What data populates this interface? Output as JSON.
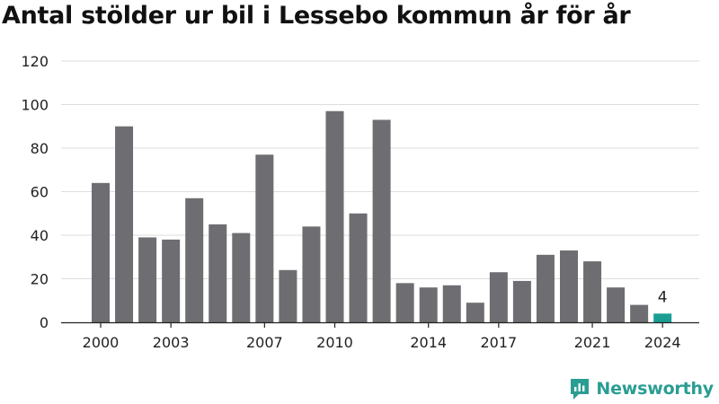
{
  "title": "Antal stölder ur bil i Lessebo kommun år för år",
  "brand": {
    "name": "Newsworthy",
    "color": "#2a9d93"
  },
  "colors": {
    "bar": "#6e6d72",
    "highlight": "#1a9e93",
    "grid": "#dddddd",
    "axis": "#222222"
  },
  "chart_data": {
    "type": "bar",
    "title": "Antal stölder ur bil i Lessebo kommun år för år",
    "xlabel": "",
    "ylabel": "",
    "categories": [
      2000,
      2001,
      2002,
      2003,
      2004,
      2005,
      2006,
      2007,
      2008,
      2009,
      2010,
      2011,
      2012,
      2013,
      2014,
      2015,
      2016,
      2017,
      2018,
      2019,
      2020,
      2021,
      2022,
      2023,
      2024
    ],
    "values": [
      64,
      90,
      39,
      38,
      57,
      45,
      41,
      77,
      24,
      44,
      97,
      50,
      93,
      18,
      16,
      17,
      9,
      23,
      19,
      31,
      33,
      28,
      16,
      8,
      4
    ],
    "x_tick_labels": [
      "2000",
      "2003",
      "2007",
      "2010",
      "2014",
      "2017",
      "2021",
      "2024"
    ],
    "y_ticks": [
      0,
      20,
      40,
      60,
      80,
      100,
      120
    ],
    "ylim": [
      0,
      120
    ],
    "grid": true,
    "highlight": {
      "category": 2024,
      "label": "4"
    }
  }
}
